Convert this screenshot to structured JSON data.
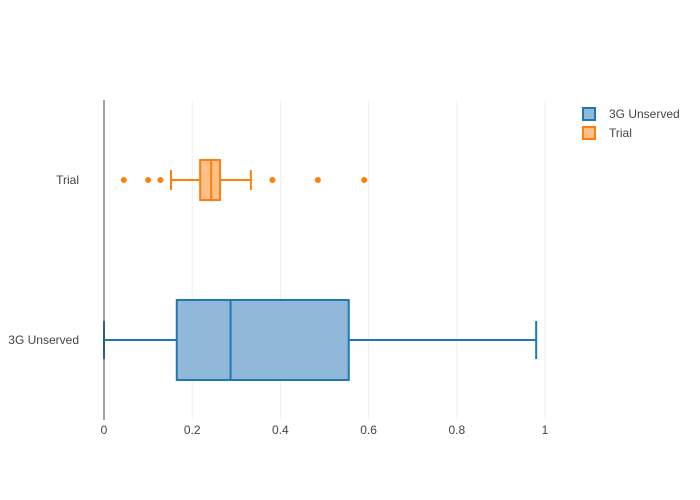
{
  "chart_data": {
    "type": "box",
    "orientation": "horizontal",
    "title": "",
    "xlabel": "",
    "ylabel": "",
    "xlim": [
      0,
      1
    ],
    "x_ticks": [
      0,
      0.2,
      0.4,
      0.6,
      0.8,
      1
    ],
    "x_tick_labels": [
      "0",
      "0.2",
      "0.4",
      "0.6",
      "0.8",
      "1"
    ],
    "grid": "vertical",
    "legend_placement": "top-right",
    "series": [
      {
        "name": "3G Unserved",
        "color": "#1f77b4",
        "fill": "#8fb8d9",
        "min": 0,
        "q1": 0.165,
        "median": 0.287,
        "q3": 0.555,
        "max": 0.98,
        "outliers": []
      },
      {
        "name": "Trial",
        "color": "#ff7f0e",
        "fill": "#ffbf86",
        "min": 0.152,
        "q1": 0.218,
        "median": 0.243,
        "q3": 0.263,
        "max": 0.333,
        "outliers": [
          0.045,
          0.1,
          0.128,
          0.382,
          0.485,
          0.59
        ]
      }
    ]
  }
}
